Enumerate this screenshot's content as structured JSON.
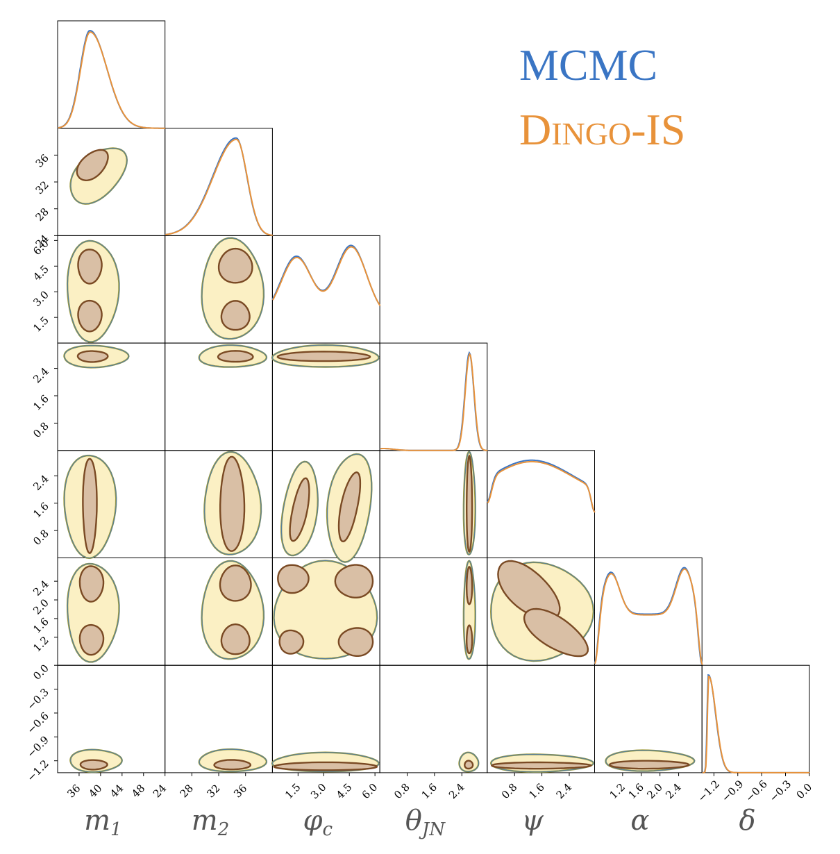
{
  "chart_data": {
    "type": "corner",
    "parameters": [
      {
        "key": "m1",
        "label": "m",
        "sub": "1",
        "range": [
          32,
          52
        ],
        "ticks": [
          36,
          40,
          44,
          48
        ],
        "tick_labels": [
          "36",
          "40",
          "44",
          "48"
        ]
      },
      {
        "key": "m2",
        "label": "m",
        "sub": "2",
        "range": [
          24,
          40
        ],
        "ticks": [
          24,
          28,
          32,
          36
        ],
        "tick_labels": [
          "24",
          "28",
          "32",
          "36"
        ]
      },
      {
        "key": "phi_c",
        "label": "φ",
        "sub": "c",
        "range": [
          0,
          6.283
        ],
        "ticks": [
          1.5,
          3.0,
          4.5,
          6.0
        ],
        "tick_labels": [
          "1.5",
          "3.0",
          "4.5",
          "6.0"
        ]
      },
      {
        "key": "theta_jn",
        "label": "θ",
        "sub": "JN",
        "range": [
          0,
          3.1416
        ],
        "ticks": [
          0.8,
          1.6,
          2.4
        ],
        "tick_labels": [
          "0.8",
          "1.6",
          "2.4"
        ]
      },
      {
        "key": "psi",
        "label": "ψ",
        "sub": "",
        "range": [
          0,
          3.1416
        ],
        "ticks": [
          0.8,
          1.6,
          2.4
        ],
        "tick_labels": [
          "0.8",
          "1.6",
          "2.4"
        ]
      },
      {
        "key": "alpha",
        "label": "α",
        "sub": "",
        "range": [
          0.6,
          2.9
        ],
        "ticks": [
          1.2,
          1.6,
          2.0,
          2.4
        ],
        "tick_labels": [
          "1.2",
          "1.6",
          "2.0",
          "2.4"
        ]
      },
      {
        "key": "delta",
        "label": "δ",
        "sub": "",
        "range": [
          -1.35,
          0.0
        ],
        "ticks": [
          -1.2,
          -0.9,
          -0.6,
          -0.3,
          0.0
        ],
        "tick_labels": [
          "−1.2",
          "−0.9",
          "−0.6",
          "−0.3",
          "0.0"
        ]
      }
    ],
    "y_tick_labels": {
      "m2": [
        "36",
        "32",
        "28",
        "24"
      ],
      "phi_c": [
        "6.0",
        "4.5",
        "3.0",
        "1.5"
      ],
      "theta_jn": [
        "2.4",
        "1.6",
        "0.8"
      ],
      "psi": [
        "2.4",
        "1.6",
        "0.8"
      ],
      "alpha": [
        "2.4",
        "2.0",
        "1.6",
        "1.2"
      ],
      "delta": [
        "0.0",
        "−0.3",
        "−0.6",
        "−0.9",
        "−1.2"
      ]
    },
    "series": [
      {
        "name": "MCMC",
        "color": "#3a75c4"
      },
      {
        "name": "DINGO-IS",
        "color": "#e8923a"
      }
    ],
    "marginals_1d": {
      "m1": {
        "shape": "skewed-peak",
        "peak_at": 38.0
      },
      "m2": {
        "shape": "left-skewed-peak",
        "peak_at": 34.5
      },
      "phi_c": {
        "shape": "bimodal",
        "peaks": [
          1.4,
          4.6
        ]
      },
      "theta_jn": {
        "shape": "sharp-peak",
        "peak_at": 2.6
      },
      "psi": {
        "shape": "broad-hump",
        "peak_at": 1.2
      },
      "alpha": {
        "shape": "bimodal",
        "peaks": [
          1.0,
          2.5
        ]
      },
      "delta": {
        "shape": "sharp-peak",
        "peak_at": -1.27
      }
    },
    "contour_levels": [
      "inner (dark brown outline, tan fill)",
      "outer (olive outline, light yellow fill)"
    ]
  },
  "legend": {
    "mcmc_label": "MCMC",
    "dingo_label_big": "D",
    "dingo_label_small": "INGO",
    "dingo_label_tail": "-IS"
  },
  "colors": {
    "mcmc": "#3a75c4",
    "dingo": "#e8923a",
    "outer_fill": "#fbf0c4",
    "inner_fill": "#d9bfa5",
    "outer_line": "#9e9a3a",
    "inner_line": "#7a4a24"
  }
}
